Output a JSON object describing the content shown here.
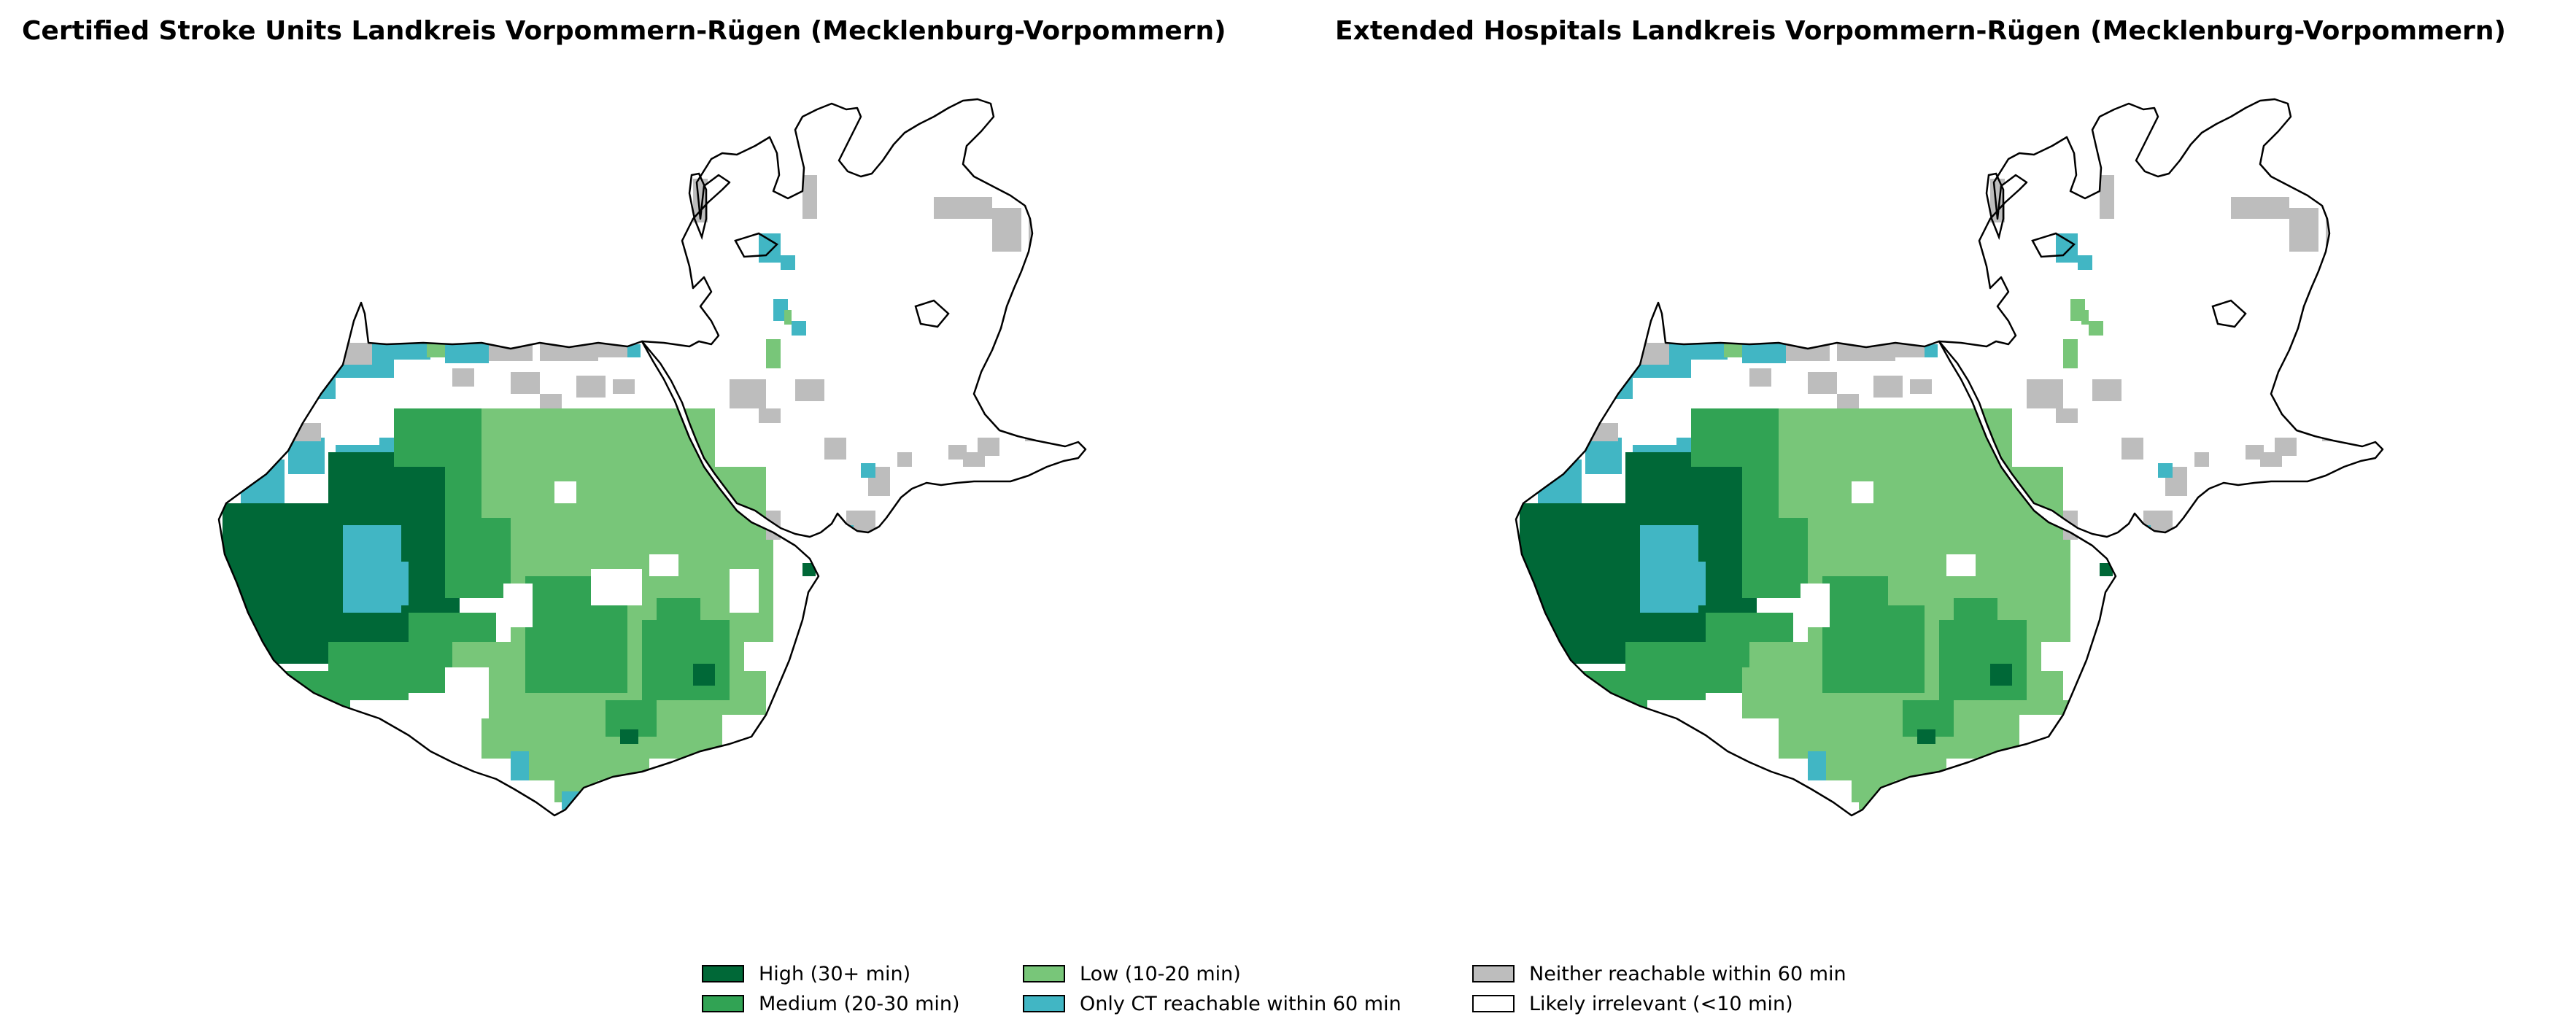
{
  "maps": [
    {
      "title": "Certified Stroke Units Landkreis Vorpommern-Rügen (Mecklenburg-Vorpommern)"
    },
    {
      "title": "Extended Hospitals Landkreis Vorpommern-Rügen (Mecklenburg-Vorpommern)"
    }
  ],
  "legend": [
    {
      "key": "high",
      "label": "High (30+ min)",
      "color": "#006837"
    },
    {
      "key": "medium",
      "label": "Medium (20-30 min)",
      "color": "#31a354"
    },
    {
      "key": "low",
      "label": "Low (10-20 min)",
      "color": "#78c679"
    },
    {
      "key": "ct_only",
      "label": "Only CT reachable within 60 min",
      "color": "#41b6c4"
    },
    {
      "key": "neither",
      "label": "Neither reachable within 60 min",
      "color": "#bdbdbd"
    },
    {
      "key": "irrelevant",
      "label": "Likely irrelevant (<10 min)",
      "color": "#ffffff"
    }
  ],
  "colors": {
    "outline": "#000000",
    "background": "#ffffff"
  }
}
